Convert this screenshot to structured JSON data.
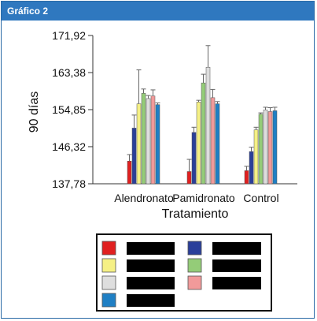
{
  "header": {
    "title": "Gráfico 2"
  },
  "chart_data": {
    "type": "bar",
    "title": "",
    "xlabel": "Tratamiento",
    "ylabel": "90 días",
    "ylim": [
      137.78,
      171.92
    ],
    "yticks": [
      "171,92",
      "163,38",
      "154,85",
      "146,32",
      "137,78"
    ],
    "ytick_values": [
      171.92,
      163.38,
      154.85,
      146.32,
      137.78
    ],
    "categories": [
      "Alendronato",
      "Pamidronato",
      "Control"
    ],
    "grid": false,
    "legend_position": "bottom",
    "series": [
      {
        "color": "#e02020",
        "values": [
          143.0,
          140.6,
          140.8
        ],
        "errors": [
          1.5,
          2.8,
          1.0
        ]
      },
      {
        "color": "#2a3f9a",
        "values": [
          150.6,
          149.6,
          145.2
        ],
        "errors": [
          3.0,
          1.2,
          1.0
        ]
      },
      {
        "color": "#f5f085",
        "values": [
          156.2,
          156.6,
          150.2
        ],
        "errors": [
          7.8,
          0.4,
          0.6
        ]
      },
      {
        "color": "#94cc78",
        "values": [
          158.6,
          161.0,
          153.8
        ],
        "errors": [
          1.0,
          2.0,
          0.3
        ]
      },
      {
        "color": "#dedede",
        "values": [
          157.4,
          164.6,
          154.8
        ],
        "errors": [
          0.7,
          5.0,
          0.6
        ]
      },
      {
        "color": "#f19a9a",
        "values": [
          158.0,
          157.6,
          154.4
        ],
        "errors": [
          1.4,
          1.9,
          0.9
        ]
      },
      {
        "color": "#1f7fc4",
        "values": [
          156.0,
          156.2,
          154.6
        ],
        "errors": [
          0.4,
          0.5,
          0.8
        ]
      }
    ]
  }
}
